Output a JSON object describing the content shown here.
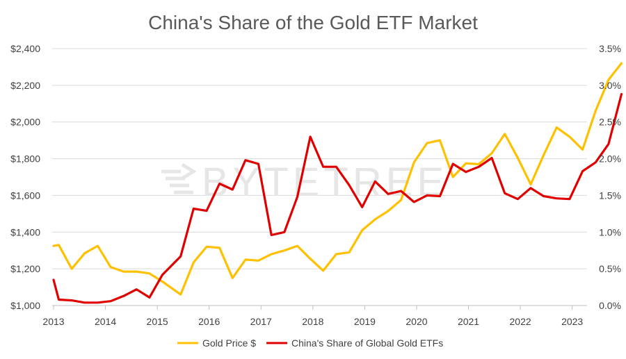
{
  "chart_data": {
    "type": "line",
    "title": "China's Share of the Gold ETF Market",
    "watermark": "BYTETREE",
    "x_tick_labels": [
      "2013",
      "2014",
      "2015",
      "2016",
      "2017",
      "2018",
      "2019",
      "2020",
      "2021",
      "2022",
      "2023"
    ],
    "y_left": {
      "range": [
        1000,
        2400
      ],
      "tick_labels": [
        "$1,000",
        "$1,200",
        "$1,400",
        "$1,600",
        "$1,800",
        "$2,000",
        "$2,200",
        "$2,400"
      ],
      "tick_values": [
        1000,
        1200,
        1400,
        1600,
        1800,
        2000,
        2200,
        2400
      ]
    },
    "y_right": {
      "range": [
        0,
        3.5
      ],
      "tick_labels": [
        "0.0%",
        "0.5%",
        "1.0%",
        "1.5%",
        "2.0%",
        "2.5%",
        "3.0%",
        "3.5%"
      ],
      "tick_values": [
        0,
        0.5,
        1,
        1.5,
        2,
        2.5,
        3,
        3.5
      ]
    },
    "grid": "horizontal",
    "legend_position": "bottom",
    "x": [
      2013.0,
      2013.1,
      2013.35,
      2013.6,
      2013.85,
      2014.1,
      2014.35,
      2014.6,
      2014.85,
      2015.1,
      2015.45,
      2015.7,
      2015.95,
      2016.2,
      2016.45,
      2016.7,
      2016.95,
      2017.2,
      2017.45,
      2017.7,
      2017.95,
      2018.2,
      2018.45,
      2018.7,
      2018.95,
      2019.2,
      2019.45,
      2019.7,
      2019.95,
      2020.2,
      2020.45,
      2020.7,
      2020.95,
      2021.2,
      2021.45,
      2021.7,
      2021.95,
      2022.2,
      2022.45,
      2022.7,
      2022.95,
      2023.2,
      2023.45,
      2023.7,
      2023.95
    ],
    "series": [
      {
        "name": "Gold Price $",
        "axis": "left",
        "color": "#FFC000",
        "values": [
          1325,
          1330,
          1200,
          1285,
          1325,
          1210,
          1185,
          1185,
          1175,
          1130,
          1060,
          1235,
          1320,
          1315,
          1150,
          1250,
          1245,
          1280,
          1300,
          1325,
          1255,
          1190,
          1280,
          1290,
          1410,
          1470,
          1515,
          1575,
          1780,
          1885,
          1900,
          1700,
          1775,
          1770,
          1830,
          1935,
          1805,
          1660,
          1820,
          1970,
          1920,
          1850,
          2060,
          2230,
          2320
        ]
      },
      {
        "name": "China's Share of Global Gold ETFs",
        "axis": "right",
        "color": "#E00000",
        "values": [
          0.35,
          0.08,
          0.07,
          0.04,
          0.04,
          0.06,
          0.13,
          0.22,
          0.11,
          0.42,
          0.67,
          1.32,
          1.29,
          1.66,
          1.58,
          1.98,
          1.93,
          0.96,
          1.0,
          1.48,
          2.3,
          1.89,
          1.89,
          1.64,
          1.34,
          1.69,
          1.52,
          1.56,
          1.41,
          1.5,
          1.49,
          1.93,
          1.82,
          1.89,
          2.01,
          1.53,
          1.45,
          1.6,
          1.49,
          1.46,
          1.45,
          1.83,
          1.95,
          2.2,
          2.88
        ]
      }
    ]
  }
}
